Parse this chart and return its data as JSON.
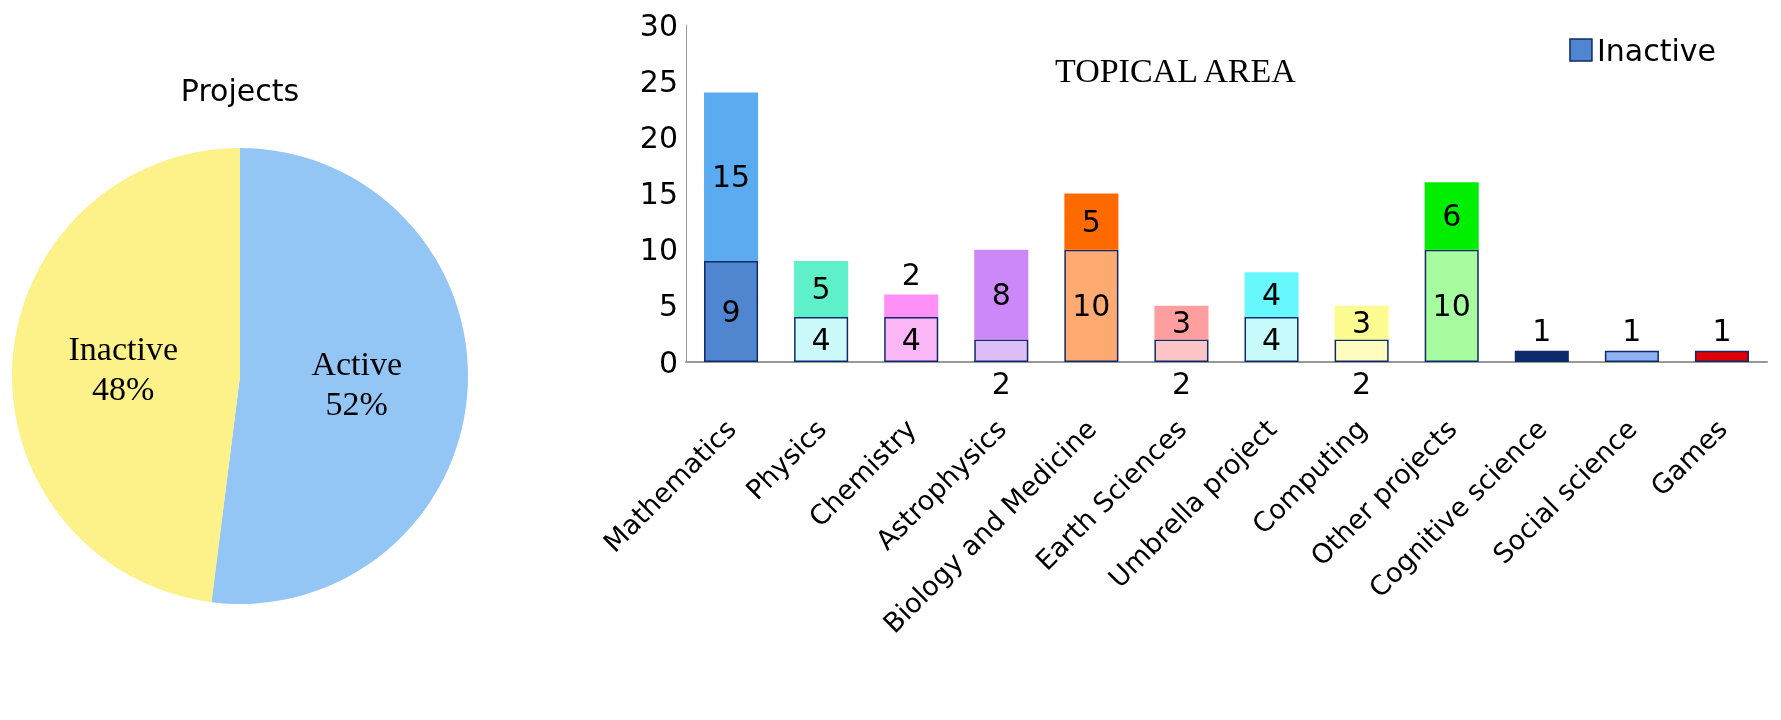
{
  "chart_data": [
    {
      "type": "pie",
      "title": "Projects",
      "categories": [
        "Active",
        "Inactive"
      ],
      "values": [
        52,
        48
      ],
      "value_labels": [
        "52%",
        "48%"
      ],
      "colors": [
        "#94c6f5",
        "#fdf28a"
      ]
    },
    {
      "type": "bar",
      "title": "TOPICAL AREA",
      "stacked": true,
      "data_labels": true,
      "legend": "top right",
      "grid": false,
      "categories": [
        "Mathematics",
        "Physics",
        "Chemistry",
        "Astrophysics",
        "Biology and Medicine",
        "Earth Sciences",
        "Umbrella project",
        "Computing",
        "Other projects",
        "Cognitive science",
        "Social science",
        "Games"
      ],
      "ylim": [
        0,
        30
      ],
      "yticks": [
        0,
        5,
        10,
        15,
        20,
        25,
        30
      ],
      "series": [
        {
          "name": "Inactive",
          "color": "#4f86cf",
          "values": [
            9,
            4,
            4,
            2,
            10,
            2,
            4,
            2,
            10,
            1,
            1,
            1
          ],
          "colors": [
            "#4f86cf",
            "#ccfafa",
            "#fbb7f5",
            "#dcbdf5",
            "#ffaa70",
            "#fcc5c5",
            "#c8fcfc",
            "#fffcc0",
            "#a7fca0",
            "#0f2a6b",
            "#8fb3f0",
            "#e00000"
          ]
        },
        {
          "color": "#5aabf0",
          "values": [
            15,
            5,
            2,
            8,
            5,
            3,
            4,
            3,
            6,
            null,
            null,
            null
          ],
          "colors": [
            "#5aabf0",
            "#5ef0c8",
            "#ff90f8",
            "#cc88f8",
            "#ff6a00",
            "#ff9e9e",
            "#66f8fc",
            "#fcfc90",
            "#00ee00",
            null,
            null,
            null
          ]
        }
      ]
    }
  ]
}
